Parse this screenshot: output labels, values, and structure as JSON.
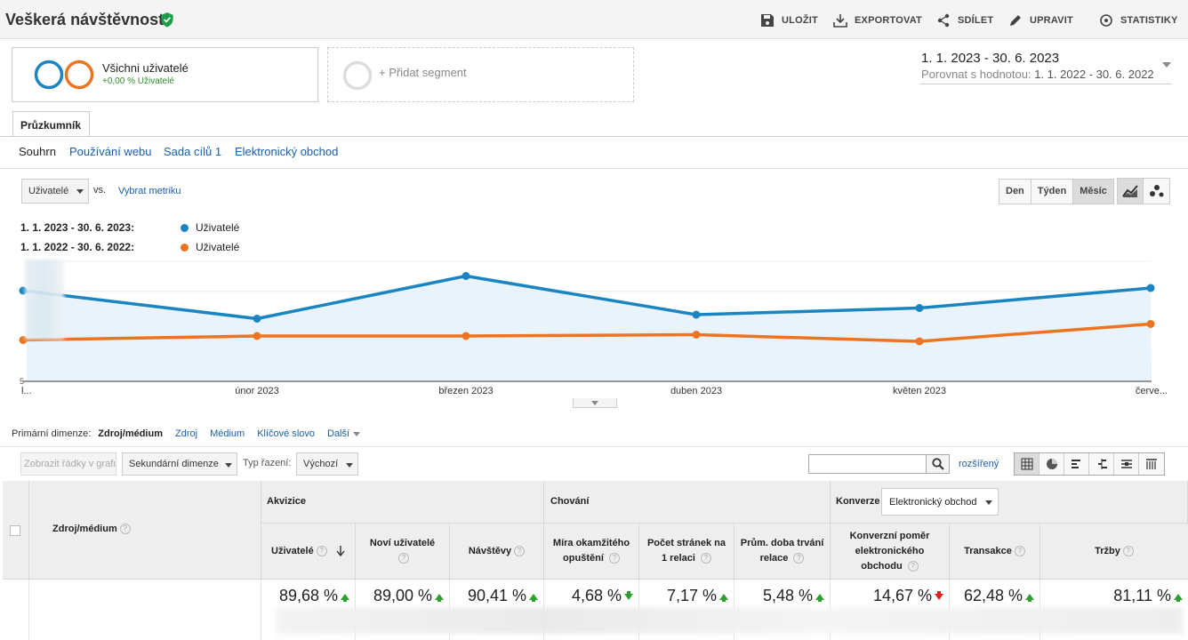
{
  "header": {
    "title": "Veškerá návštěvnost",
    "buttons": {
      "save": "ULOŽIT",
      "export": "EXPORTOVAT",
      "share": "SDÍLET",
      "edit": "UPRAVIT",
      "stats": "STATISTIKY"
    }
  },
  "segments": {
    "all": {
      "label": "Všichni uživatelé",
      "change": "+0,00 % Uživatelé"
    },
    "add": {
      "label": "+ Přidat segment"
    }
  },
  "date_range": {
    "current": "1. 1. 2023 - 30. 6. 2023",
    "compare_prefix": "Porovnat s hodnotou:",
    "compare": "1. 1. 2022 - 30. 6. 2022"
  },
  "tab": {
    "label": "Průzkumník"
  },
  "subtabs": [
    "Souhrn",
    "Používání webu",
    "Sada cílů 1",
    "Elektronický obchod"
  ],
  "metric": {
    "selected": "Uživatelé",
    "vs": "vs.",
    "pick": "Vybrat metriku"
  },
  "period": {
    "day": "Den",
    "week": "Týden",
    "month": "Měsíc",
    "active": "month"
  },
  "legend": {
    "current_range": "1. 1. 2023 - 30. 6. 2023:",
    "compare_range": "1. 1. 2022 - 30. 6. 2022:",
    "series_name": "Uživatelé"
  },
  "colors": {
    "series_current": "#1a85c1",
    "series_compare": "#ed7422",
    "area": "#e4f1fa"
  },
  "chart_data": {
    "type": "line",
    "x": [
      "l...",
      "únor 2023",
      "březen 2023",
      "duben 2023",
      "květen 2023",
      "červe..."
    ],
    "series": [
      {
        "name": "Uživatelé",
        "period": "current",
        "values": [
          68,
          47,
          79,
          50,
          55,
          70
        ]
      },
      {
        "name": "Uživatelé",
        "period": "compare",
        "values": [
          31,
          34,
          34,
          35,
          30,
          43
        ]
      }
    ],
    "ylim": [
      0,
      90
    ],
    "y_axis_label_visible": "5",
    "grid": true
  },
  "primary_dimension": {
    "label": "Primární dimenze:",
    "options": [
      "Zdroj/médium",
      "Zdroj",
      "Médium",
      "Klíčové slovo",
      "Další"
    ],
    "active": "Zdroj/médium"
  },
  "table_toolbar": {
    "show_rows": "Zobrazit řádky v grafu",
    "secondary_dim": "Sekundární dimenze",
    "sort_label": "Typ řazení:",
    "sort_value": "Výchozí",
    "search_value": "",
    "advanced": "rozšířený"
  },
  "table": {
    "dimension_header": "Zdroj/médium",
    "groups": {
      "acquisition": "Akvizice",
      "behavior": "Chování",
      "conversions": "Konverze",
      "conversion_select": "Elektronický obchod"
    },
    "columns": [
      {
        "label": "Uživatelé",
        "value": "89,68 %",
        "trend": "up"
      },
      {
        "label": "Noví uživatelé",
        "value": "89,00 %",
        "trend": "up"
      },
      {
        "label": "Návštěvy",
        "value": "90,41 %",
        "trend": "up"
      },
      {
        "label": "Míra okamžitého opuštění",
        "value": "4,68 %",
        "trend": "down"
      },
      {
        "label": "Počet stránek na 1 relaci",
        "value": "7,17 %",
        "trend": "up"
      },
      {
        "label": "Prům. doba trvání relace",
        "value": "5,48 %",
        "trend": "up"
      },
      {
        "label": "Konverzní poměr elektronického obchodu",
        "value": "14,67 %",
        "trend": "down-red"
      },
      {
        "label": "Transakce",
        "value": "62,48 %",
        "trend": "up"
      },
      {
        "label": "Tržby",
        "value": "81,11 %",
        "trend": "up"
      }
    ]
  }
}
